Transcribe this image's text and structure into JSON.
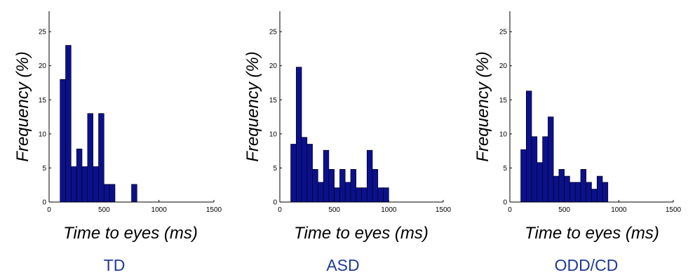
{
  "chart_data": [
    {
      "type": "bar",
      "title": "TD",
      "xlabel": "Time to eyes (ms)",
      "ylabel": "Frequency (%)",
      "xlim": [
        0,
        1500
      ],
      "ylim": [
        0,
        28
      ],
      "xticks": [
        0,
        500,
        1000,
        1500
      ],
      "yticks": [
        0,
        5,
        10,
        15,
        20,
        25
      ],
      "bar_color": "#0b108c",
      "bin_width": 50,
      "bins": [
        100,
        150,
        200,
        250,
        300,
        350,
        400,
        450,
        500,
        550,
        600,
        650,
        700,
        750,
        800
      ],
      "values": [
        18,
        23,
        5.2,
        7.8,
        5.2,
        13,
        5.2,
        13,
        2.6,
        2.6,
        0,
        0,
        0,
        2.6,
        0
      ]
    },
    {
      "type": "bar",
      "title": "ASD",
      "xlabel": "Time to eyes (ms)",
      "ylabel": "Frequency (%)",
      "xlim": [
        0,
        1500
      ],
      "ylim": [
        0,
        28
      ],
      "xticks": [
        0,
        500,
        1000,
        1500
      ],
      "yticks": [
        0,
        5,
        10,
        15,
        20,
        25
      ],
      "bar_color": "#0b108c",
      "bin_width": 50,
      "bins": [
        100,
        150,
        200,
        250,
        300,
        350,
        400,
        450,
        500,
        550,
        600,
        650,
        700,
        750,
        800,
        850,
        900,
        950
      ],
      "values": [
        8.5,
        19.8,
        9.5,
        8.5,
        4.8,
        2.9,
        7.6,
        4.8,
        2.1,
        4.8,
        2.9,
        4.8,
        2.1,
        2.1,
        7.6,
        4.8,
        2.1,
        2.1
      ]
    },
    {
      "type": "bar",
      "title": "ODD/CD",
      "xlabel": "Time to eyes (ms)",
      "ylabel": "Frequency (%)",
      "xlim": [
        0,
        1500
      ],
      "ylim": [
        0,
        28
      ],
      "xticks": [
        0,
        500,
        1000,
        1500
      ],
      "yticks": [
        0,
        5,
        10,
        15,
        20,
        25
      ],
      "bar_color": "#0b108c",
      "bin_width": 50,
      "bins": [
        100,
        150,
        200,
        250,
        300,
        350,
        400,
        450,
        500,
        550,
        600,
        650,
        700,
        750,
        800,
        850
      ],
      "values": [
        7.7,
        16.3,
        9.6,
        5.8,
        9.6,
        12.5,
        3.8,
        4.8,
        3.8,
        2.9,
        2.9,
        4.8,
        2.9,
        1.9,
        3.8,
        2.9
      ]
    }
  ]
}
